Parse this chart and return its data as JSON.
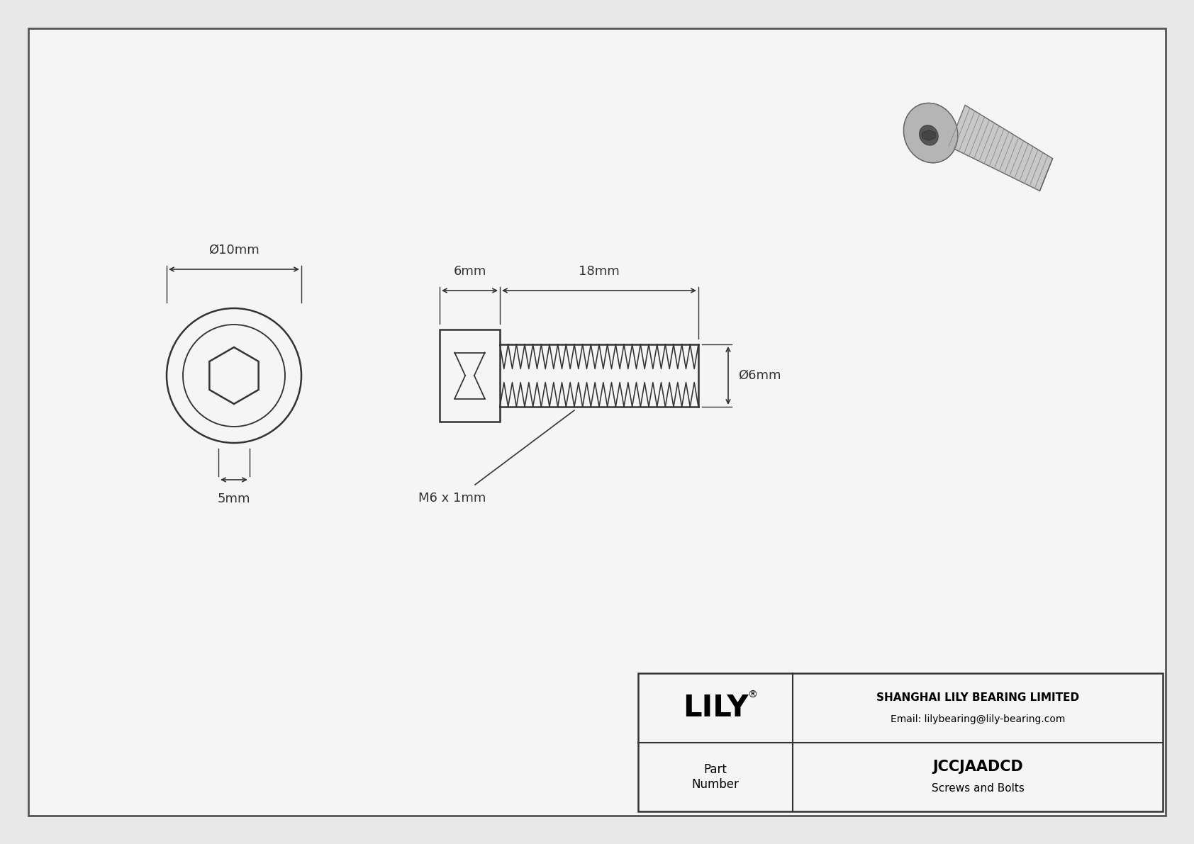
{
  "bg_color": "#e8e8e8",
  "drawing_bg": "#f5f5f5",
  "border_color": "#444444",
  "line_color": "#333333",
  "title_company": "SHANGHAI LILY BEARING LIMITED",
  "title_email": "Email: lilybearing@lily-bearing.com",
  "part_number": "JCCJAADCD",
  "part_category": "Screws and Bolts",
  "diameter_symbol": "Ø",
  "dim_head_diameter": "Ø10mm",
  "dim_socket_depth": "5mm",
  "dim_head_length": "6mm",
  "dim_thread_length": "18mm",
  "dim_thread_diameter": "Ø6mm",
  "dim_thread_spec": "M6 x 1mm",
  "fig_width": 16.84,
  "fig_height": 11.91,
  "fig_dpi": 100
}
